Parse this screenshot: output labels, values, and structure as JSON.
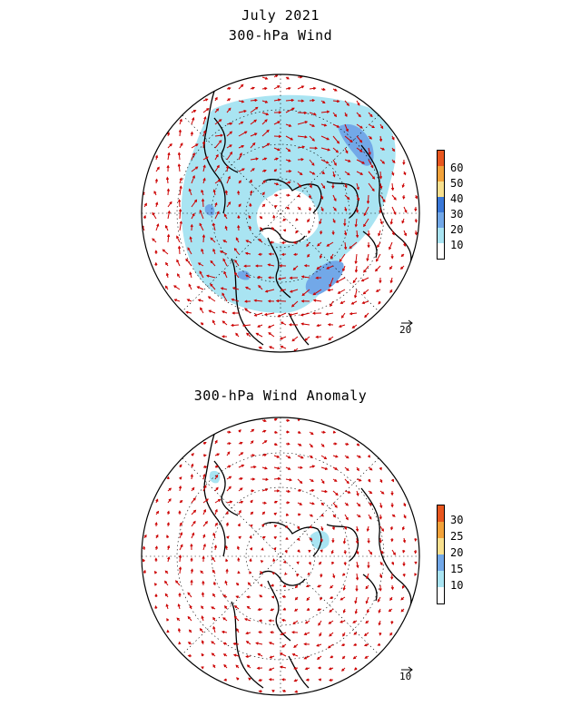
{
  "top_panel": {
    "title_line1": "July 2021",
    "title_line2": "300-hPa Wind",
    "colorbar": {
      "labels": [
        "60",
        "50",
        "40",
        "30",
        "20",
        "10"
      ],
      "colors": [
        "#e8561e",
        "#f2a23a",
        "#f8e08e",
        "#3a78d8",
        "#72a8e8",
        "#a9e4f2",
        "#ffffff"
      ]
    },
    "reference_vector": "20"
  },
  "bottom_panel": {
    "title": "300-hPa Wind Anomaly",
    "colorbar": {
      "labels": [
        "30",
        "25",
        "20",
        "15",
        "10"
      ],
      "colors": [
        "#e8561e",
        "#f2a23a",
        "#f8e08e",
        "#72a8e8",
        "#a9e4f2",
        "#ffffff"
      ]
    },
    "reference_vector": "10"
  },
  "style": {
    "vector_color": "#cc0000",
    "coast_color": "#000000",
    "shade_light": "#a9e4f2",
    "shade_mid": "#72a8e8",
    "shade_dark": "#3a78d8"
  }
}
